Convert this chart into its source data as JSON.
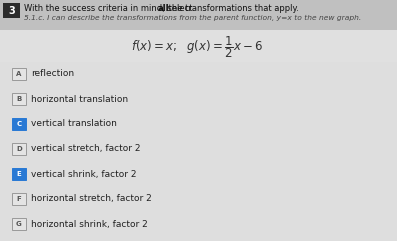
{
  "question_number": "3",
  "question_number_bg": "#2c2c2c",
  "header_line1_pre": "With the success criteria in mind, select ",
  "header_bold": "all",
  "header_line1_post": " the transformations that apply.",
  "header_line2": "5.1.c. I can describe the transformations from the parent function, y=x to the new graph.",
  "bg_color": "#cccccc",
  "top_bg_color": "#c8c8c8",
  "formula_area_bg": "#e8e8e8",
  "options_bg": "#e0e0e0",
  "options": [
    {
      "label": "A",
      "text": "reflection",
      "selected": false
    },
    {
      "label": "B",
      "text": "horizontal translation",
      "selected": false
    },
    {
      "label": "C",
      "text": "vertical translation",
      "selected": true
    },
    {
      "label": "D",
      "text": "vertical stretch, factor 2",
      "selected": false
    },
    {
      "label": "E",
      "text": "vertical shrink, factor 2",
      "selected": true
    },
    {
      "label": "F",
      "text": "horizontal stretch, factor 2",
      "selected": false
    },
    {
      "label": "G",
      "text": "horizontal shrink, factor 2",
      "selected": false
    }
  ],
  "selected_color": "#2979d4",
  "unselected_box_bg": "#e4e4e4",
  "unselected_box_border": "#999999",
  "label_text_selected": "#ffffff",
  "label_text_unselected": "#555555",
  "option_text_color": "#222222",
  "header_text_color": "#111111",
  "subtitle_text_color": "#444444",
  "badge_text_color": "#ffffff"
}
